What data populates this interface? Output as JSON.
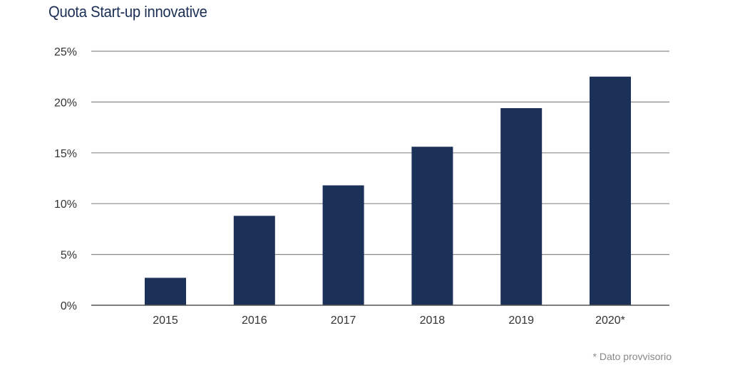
{
  "chart_data": {
    "type": "bar",
    "title": "Quota Start-up innovative",
    "categories": [
      "2015",
      "2016",
      "2017",
      "2018",
      "2019",
      "2020*"
    ],
    "series": [
      {
        "values": [
          2.7,
          8.8,
          11.8,
          15.6,
          19.4,
          22.5
        ]
      }
    ],
    "y_ticks": [
      "0%",
      "5%",
      "10%",
      "15%",
      "20%",
      "25%"
    ],
    "ylim": [
      0,
      25
    ],
    "xlabel": "",
    "ylabel": "",
    "grid": true,
    "legend": "none",
    "bar_color": "#1b3157",
    "footnote": "* Dato provvisorio"
  }
}
